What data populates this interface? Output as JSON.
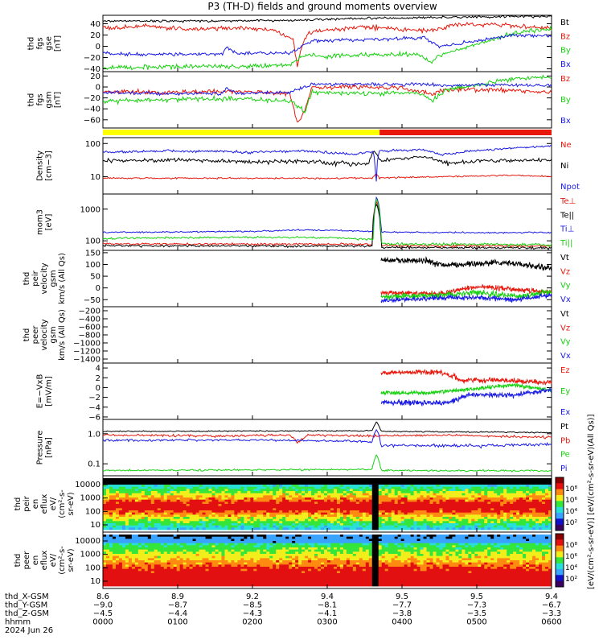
{
  "title": "P3 (TH-D) fields and ground moments overview",
  "colors": {
    "black": "#000000",
    "red": "#e8180c",
    "green": "#16d10e",
    "blue": "#1a1ae6",
    "yellow": "#ffff00"
  },
  "status_bar": {
    "colors": [
      "yellow",
      "red"
    ],
    "split_hhmm": "0342"
  },
  "chart_data": [
    {
      "type": "line",
      "panel": "fgs_gse",
      "ylabel": [
        "thd",
        "fgs",
        "gse",
        "[nT]"
      ],
      "yticks": [
        "40",
        "20",
        "0",
        "−20",
        "−40"
      ],
      "ylim": [
        -45,
        55
      ],
      "series": [
        {
          "name": "Bt",
          "color": "black"
        },
        {
          "name": "Bz",
          "color": "red"
        },
        {
          "name": "By",
          "color": "green"
        },
        {
          "name": "Bx",
          "color": "blue"
        }
      ]
    },
    {
      "type": "line",
      "panel": "fgs_gsm",
      "ylabel": [
        "thd",
        "fgs",
        "gsm",
        "[nT]"
      ],
      "yticks": [
        "20",
        "0",
        "−20",
        "−40",
        "−60"
      ],
      "ylim": [
        -75,
        28
      ],
      "series": [
        {
          "name": "Bz",
          "color": "red"
        },
        {
          "name": "By",
          "color": "green"
        },
        {
          "name": "Bx",
          "color": "blue"
        }
      ]
    },
    {
      "type": "line",
      "panel": "density",
      "scale": "log",
      "ylabel": [
        "Density",
        "[cm−3]"
      ],
      "yticks": [
        "100",
        "10"
      ],
      "ylim": [
        3,
        150
      ],
      "series": [
        {
          "name": "Ne",
          "color": "red"
        },
        {
          "name": "Ni",
          "color": "black"
        },
        {
          "name": "Npot",
          "color": "blue"
        }
      ]
    },
    {
      "type": "line",
      "panel": "temperature",
      "scale": "log",
      "ylabel": [
        "mom3",
        "[eV]"
      ],
      "yticks": [
        "1000",
        "100"
      ],
      "ylim": [
        50,
        3000
      ],
      "series": [
        {
          "name": "Te⊥",
          "color": "red"
        },
        {
          "name": "Te||",
          "color": "black"
        },
        {
          "name": "Ti⊥",
          "color": "blue"
        },
        {
          "name": "Ti||",
          "color": "green"
        }
      ]
    },
    {
      "type": "line",
      "panel": "peir_velocity",
      "ylabel": [
        "thd",
        "peir",
        "velocity",
        "gsm",
        "km/s (All Qs)"
      ],
      "yticks": [
        "150",
        "100",
        "50",
        "0",
        "−50"
      ],
      "ylim": [
        -80,
        160
      ],
      "series": [
        {
          "name": "Vt",
          "color": "black"
        },
        {
          "name": "Vz",
          "color": "red"
        },
        {
          "name": "Vy",
          "color": "green"
        },
        {
          "name": "Vx",
          "color": "blue"
        }
      ]
    },
    {
      "type": "line",
      "panel": "peer_velocity",
      "ylabel": [
        "thd",
        "peer",
        "velocity",
        "gsm",
        "km/s (All Qs)"
      ],
      "yticks": [
        "−200",
        "−400",
        "−600",
        "−800",
        "−1000",
        "−1200",
        "−1400"
      ],
      "ylim": [
        -1500,
        -100
      ],
      "series": [
        {
          "name": "Vt",
          "color": "black"
        },
        {
          "name": "Vz",
          "color": "red"
        },
        {
          "name": "Vy",
          "color": "green"
        },
        {
          "name": "Vx",
          "color": "blue"
        }
      ]
    },
    {
      "type": "line",
      "panel": "efield",
      "ylabel": [
        "E=−VxB",
        "[mV/m]"
      ],
      "yticks": [
        "4",
        "2",
        "0",
        "−2",
        "−4",
        "−6"
      ],
      "ylim": [
        -6.5,
        5
      ],
      "series": [
        {
          "name": "Ez",
          "color": "red"
        },
        {
          "name": "Ey",
          "color": "green"
        },
        {
          "name": "Ex",
          "color": "blue"
        }
      ]
    },
    {
      "type": "line",
      "panel": "pressure",
      "scale": "log",
      "ylabel": [
        "Pressure",
        "[nPa]"
      ],
      "yticks": [
        "1.0",
        "0.1"
      ],
      "ylim": [
        0.04,
        3
      ],
      "series": [
        {
          "name": "Pt",
          "color": "black"
        },
        {
          "name": "Pb",
          "color": "red"
        },
        {
          "name": "Pe",
          "color": "green"
        },
        {
          "name": "Pi",
          "color": "blue"
        }
      ]
    },
    {
      "type": "heatmap",
      "panel": "peir_spectrogram",
      "ylabel": [
        "thd",
        "peir",
        "en",
        "eflux",
        "eV/",
        "(cm²-s-",
        "sr-eV)"
      ],
      "yticks": [
        "10000",
        "1000",
        "100",
        "10"
      ]
    },
    {
      "type": "heatmap",
      "panel": "peer_spectrogram",
      "ylabel": [
        "thd",
        "peer",
        "en",
        "eflux",
        "eV/",
        "(cm²-s-",
        "sr-eV)"
      ],
      "yticks": [
        "10000",
        "1000",
        "100",
        "10"
      ]
    }
  ],
  "colorbar": {
    "label": "[eV/(cm²-s-sr-eV)] [eV/(cm²-s-sr-eV)(All Qs)]",
    "upper_ticks": [
      "10⁸",
      "10⁶",
      "10⁴",
      "10²"
    ],
    "lower_ticks": [
      "10⁸",
      "10⁶",
      "10⁴",
      "10²"
    ]
  },
  "x_axis": {
    "rows": [
      {
        "label": "thd_X-GSM",
        "values": [
          "8.6",
          "8.9",
          "9.2",
          "9.4",
          "9.5",
          "9.5",
          "9.4"
        ]
      },
      {
        "label": "thd_Y-GSM",
        "values": [
          "−9.0",
          "−8.7",
          "−8.5",
          "−8.1",
          "−7.7",
          "−7.3",
          "−6.7"
        ]
      },
      {
        "label": "thd_Z-GSM",
        "values": [
          "−4.5",
          "−4.4",
          "−4.3",
          "−4.1",
          "−3.8",
          "−3.5",
          "−3.3"
        ]
      },
      {
        "label": "hhmm",
        "values": [
          "0000",
          "0100",
          "0200",
          "0300",
          "0400",
          "0500",
          "0600"
        ]
      }
    ],
    "date": "2024 Jun 26"
  }
}
